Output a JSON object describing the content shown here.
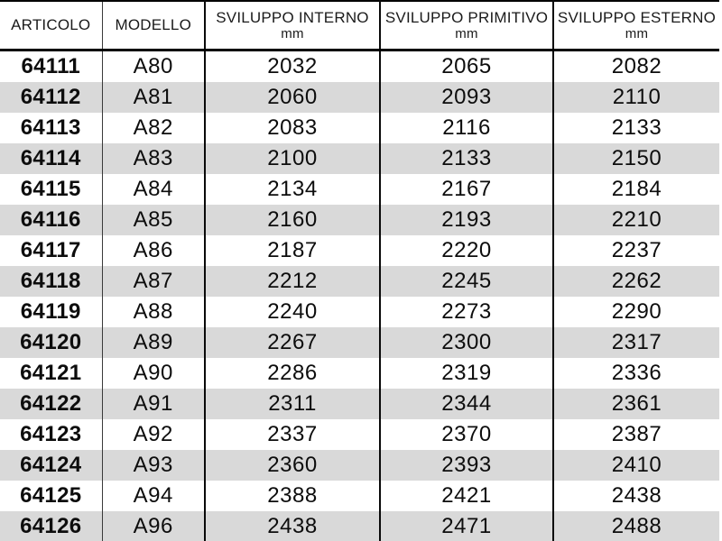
{
  "table": {
    "columns": [
      {
        "key": "articolo",
        "label": "ARTICOLO",
        "unit": ""
      },
      {
        "key": "modello",
        "label": "MODELLO",
        "unit": ""
      },
      {
        "key": "interno",
        "label": "SVILUPPO INTERNO",
        "unit": "mm"
      },
      {
        "key": "primitivo",
        "label": "SVILUPPO PRIMITIVO",
        "unit": "mm"
      },
      {
        "key": "esterno",
        "label": "SVILUPPO ESTERNO",
        "unit": "mm"
      }
    ],
    "rows": [
      [
        "64111",
        "A80",
        "2032",
        "2065",
        "2082"
      ],
      [
        "64112",
        "A81",
        "2060",
        "2093",
        "2110"
      ],
      [
        "64113",
        "A82",
        "2083",
        "2116",
        "2133"
      ],
      [
        "64114",
        "A83",
        "2100",
        "2133",
        "2150"
      ],
      [
        "64115",
        "A84",
        "2134",
        "2167",
        "2184"
      ],
      [
        "64116",
        "A85",
        "2160",
        "2193",
        "2210"
      ],
      [
        "64117",
        "A86",
        "2187",
        "2220",
        "2237"
      ],
      [
        "64118",
        "A87",
        "2212",
        "2245",
        "2262"
      ],
      [
        "64119",
        "A88",
        "2240",
        "2273",
        "2290"
      ],
      [
        "64120",
        "A89",
        "2267",
        "2300",
        "2317"
      ],
      [
        "64121",
        "A90",
        "2286",
        "2319",
        "2336"
      ],
      [
        "64122",
        "A91",
        "2311",
        "2344",
        "2361"
      ],
      [
        "64123",
        "A92",
        "2337",
        "2370",
        "2387"
      ],
      [
        "64124",
        "A93",
        "2360",
        "2393",
        "2410"
      ],
      [
        "64125",
        "A94",
        "2388",
        "2421",
        "2438"
      ],
      [
        "64126",
        "A96",
        "2438",
        "2471",
        "2488"
      ]
    ]
  },
  "colors": {
    "stripe": "#d9d9d9",
    "border": "#000000",
    "text": "#0d0d0d"
  }
}
